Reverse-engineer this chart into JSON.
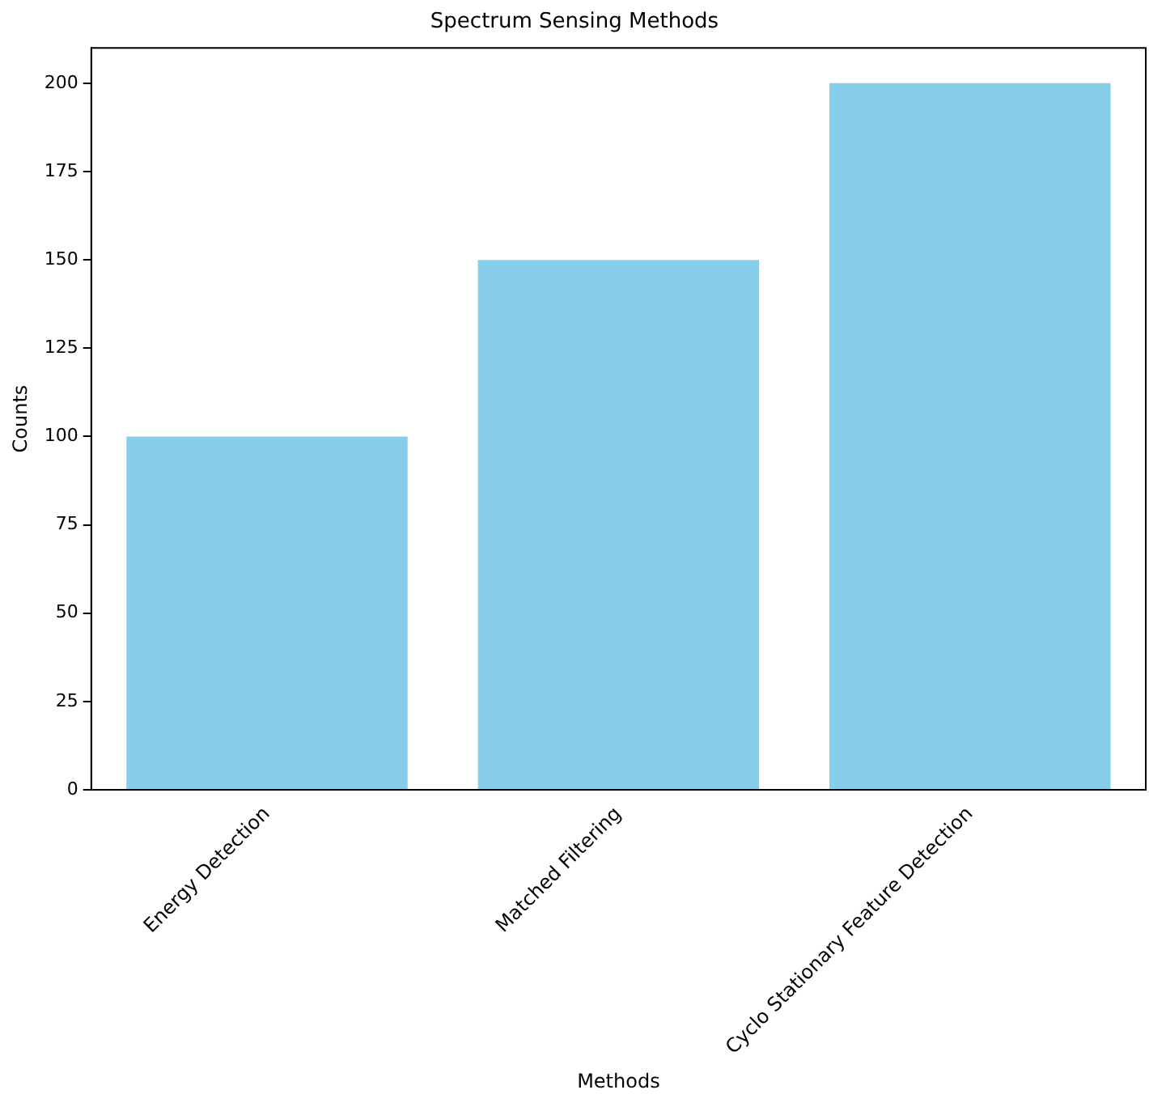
{
  "chart_data": {
    "type": "bar",
    "title": "Spectrum Sensing Methods",
    "xlabel": "Methods",
    "ylabel": "Counts",
    "categories": [
      "Energy Detection",
      "Matched Filtering",
      "Cyclo Stationary Feature Detection"
    ],
    "values": [
      100,
      150,
      200
    ],
    "color": "#87ceeb",
    "ylim": [
      0,
      210
    ],
    "yticks": [
      0,
      25,
      50,
      75,
      100,
      125,
      150,
      175,
      200
    ],
    "grid": false,
    "legend": false
  }
}
